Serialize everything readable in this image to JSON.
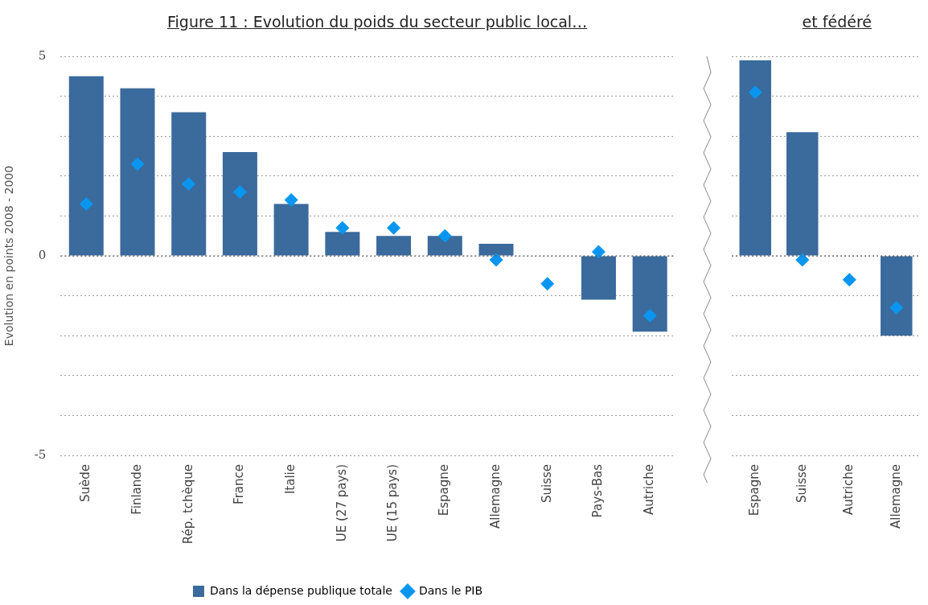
{
  "chart_data": [
    {
      "type": "bar",
      "title": "Figure 11 : Evolution du poids du secteur public local…",
      "ylabel": "Evolution en points 2008 - 2000",
      "categories": [
        "Suède",
        "Finlande",
        "Rép. tchèque",
        "France",
        "Italie",
        "UE (27 pays)",
        "UE (15 pays)",
        "Espagne",
        "Allemagne",
        "Suisse",
        "Pays-Bas",
        "Autriche"
      ],
      "series": [
        {
          "name": "Dans la dépense publique totale",
          "color": "#3b6a9c",
          "values": [
            4.5,
            4.2,
            3.6,
            2.6,
            1.3,
            0.6,
            0.5,
            0.5,
            0.3,
            0.0,
            -1.1,
            -1.9
          ]
        },
        {
          "name": "Dans le PIB",
          "type": "scatter",
          "color": "#0a96f0",
          "values": [
            1.3,
            2.3,
            1.8,
            1.6,
            1.4,
            0.7,
            0.7,
            0.5,
            -0.1,
            -0.7,
            0.1,
            -1.5
          ]
        }
      ],
      "marker": "diamond",
      "ylim": [
        -5,
        5
      ],
      "yticks": [
        -5,
        {
          "value": -4,
          "label": null
        },
        {
          "value": -3,
          "label": null
        },
        {
          "value": -2,
          "label": null
        },
        {
          "value": -1,
          "label": null
        },
        0,
        {
          "value": 1,
          "label": null
        },
        {
          "value": 2,
          "label": null
        },
        {
          "value": 3,
          "label": null
        },
        {
          "value": 4,
          "label": null
        },
        5
      ],
      "grid": "y",
      "legend": "bottom",
      "ref_lines": [
        {
          "axis": "y",
          "value": 0,
          "color": "#555555",
          "line_style": "dotted"
        }
      ]
    },
    {
      "type": "bar",
      "title": "et fédéré",
      "categories": [
        "Espagne",
        "Suisse",
        "Autriche",
        "Allemagne"
      ],
      "series": [
        {
          "color": "#3b6a9c",
          "values": [
            4.9,
            3.1,
            0.0,
            -2.0
          ]
        },
        {
          "type": "scatter",
          "color": "#0a96f0",
          "values": [
            4.1,
            -0.1,
            -0.6,
            -1.3
          ]
        }
      ],
      "marker": "diamond",
      "ylim": [
        -5,
        5
      ],
      "yticks": [
        {
          "value": -5,
          "label": null
        },
        {
          "value": -4,
          "label": null
        },
        {
          "value": -3,
          "label": null
        },
        {
          "value": -2,
          "label": null
        },
        {
          "value": -1,
          "label": null
        },
        {
          "value": 0,
          "label": null
        },
        {
          "value": 1,
          "label": null
        },
        {
          "value": 2,
          "label": null
        },
        {
          "value": 3,
          "label": null
        },
        {
          "value": 4,
          "label": null
        },
        {
          "value": 5,
          "label": null
        }
      ],
      "grid": "y",
      "tick_labels": "x",
      "ref_lines": [
        {
          "axis": "y",
          "value": 0,
          "color": "#555555",
          "line_style": "dotted"
        }
      ]
    }
  ]
}
